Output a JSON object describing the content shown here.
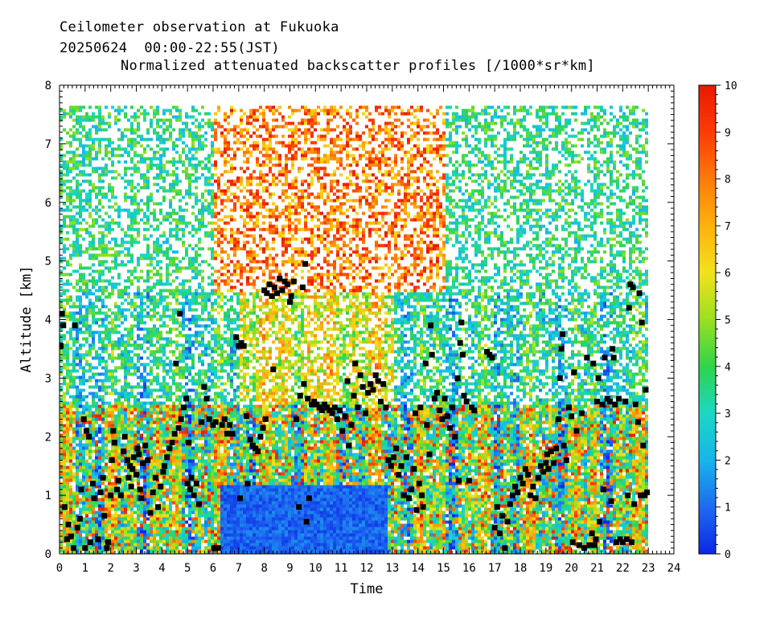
{
  "header": {
    "line1": "Ceilometer observation at Fukuoka",
    "line2": "20250624  00:00-22:55(JST)",
    "line3": "Normalized attenuated backscatter profiles [/1000*sr*km]"
  },
  "chart_data": {
    "type": "heatmap",
    "title": "Normalized attenuated backscatter profiles [/1000*sr*km]",
    "xlabel": "Time",
    "ylabel": "Altitude [km]",
    "xlim": [
      0,
      24
    ],
    "ylim": [
      0,
      8
    ],
    "xticks": [
      "0",
      "1",
      "2",
      "3",
      "4",
      "5",
      "6",
      "7",
      "8",
      "9",
      "10",
      "11",
      "12",
      "13",
      "14",
      "15",
      "16",
      "17",
      "18",
      "19",
      "20",
      "21",
      "22",
      "23",
      "24"
    ],
    "yticks": [
      "0",
      "1",
      "2",
      "3",
      "4",
      "5",
      "6",
      "7",
      "8"
    ],
    "colorbar": {
      "min": 0,
      "max": 10,
      "ticks": [
        "0",
        "1",
        "2",
        "3",
        "4",
        "5",
        "6",
        "7",
        "8",
        "9",
        "10"
      ],
      "colors": [
        "#0b28e6",
        "#1e6bf0",
        "#17b5ea",
        "#19d8c4",
        "#2fd44a",
        "#9be020",
        "#f2e21a",
        "#ffb10d",
        "#ff7a0a",
        "#ff3a05",
        "#e61a00"
      ]
    },
    "data_end_time": 22.92,
    "data_top_altitude": 7.65,
    "cloud_base_heights": [
      {
        "t": 0.05,
        "h": 3.55
      },
      {
        "t": 0.1,
        "h": 4.1
      },
      {
        "t": 0.15,
        "h": 3.9
      },
      {
        "t": 0.2,
        "h": 0.8
      },
      {
        "t": 0.3,
        "h": 0.25
      },
      {
        "t": 0.35,
        "h": 0.5
      },
      {
        "t": 0.45,
        "h": 0.3
      },
      {
        "t": 0.55,
        "h": 0.1
      },
      {
        "t": 0.6,
        "h": 3.9
      },
      {
        "t": 0.7,
        "h": 0.45
      },
      {
        "t": 0.8,
        "h": 0.6
      },
      {
        "t": 0.85,
        "h": 1.1
      },
      {
        "t": 0.95,
        "h": 2.3
      },
      {
        "t": 1.0,
        "h": 0.1
      },
      {
        "t": 1.05,
        "h": 2.1
      },
      {
        "t": 1.15,
        "h": 2.0
      },
      {
        "t": 1.2,
        "h": 0.2
      },
      {
        "t": 1.3,
        "h": 1.2
      },
      {
        "t": 1.35,
        "h": 0.95
      },
      {
        "t": 1.5,
        "h": 0.25
      },
      {
        "t": 1.6,
        "h": 1.05
      },
      {
        "t": 1.7,
        "h": 1.3
      },
      {
        "t": 1.75,
        "h": 0.65
      },
      {
        "t": 1.85,
        "h": 0.1
      },
      {
        "t": 1.9,
        "h": 0.2
      },
      {
        "t": 2.0,
        "h": 1.0
      },
      {
        "t": 2.05,
        "h": 1.6
      },
      {
        "t": 2.1,
        "h": 2.1
      },
      {
        "t": 2.15,
        "h": 1.9
      },
      {
        "t": 2.25,
        "h": 1.1
      },
      {
        "t": 2.3,
        "h": 1.25
      },
      {
        "t": 2.4,
        "h": 1.0
      },
      {
        "t": 2.5,
        "h": 1.75
      },
      {
        "t": 2.55,
        "h": 2.0
      },
      {
        "t": 2.65,
        "h": 1.6
      },
      {
        "t": 2.7,
        "h": 1.3
      },
      {
        "t": 2.75,
        "h": 1.5
      },
      {
        "t": 2.8,
        "h": 1.15
      },
      {
        "t": 2.85,
        "h": 1.45
      },
      {
        "t": 2.9,
        "h": 1.65
      },
      {
        "t": 3.0,
        "h": 1.35
      },
      {
        "t": 3.05,
        "h": 1.8
      },
      {
        "t": 3.1,
        "h": 1.7
      },
      {
        "t": 3.15,
        "h": 1.1
      },
      {
        "t": 3.2,
        "h": 0.95
      },
      {
        "t": 3.25,
        "h": 1.55
      },
      {
        "t": 3.35,
        "h": 1.85
      },
      {
        "t": 3.45,
        "h": 1.6
      },
      {
        "t": 3.55,
        "h": 0.7
      },
      {
        "t": 3.65,
        "h": 1.05
      },
      {
        "t": 3.75,
        "h": 1.3
      },
      {
        "t": 3.85,
        "h": 0.8
      },
      {
        "t": 3.95,
        "h": 1.15
      },
      {
        "t": 4.05,
        "h": 1.4
      },
      {
        "t": 4.1,
        "h": 1.5
      },
      {
        "t": 4.2,
        "h": 1.65
      },
      {
        "t": 4.3,
        "h": 1.8
      },
      {
        "t": 4.4,
        "h": 1.9
      },
      {
        "t": 4.5,
        "h": 2.05
      },
      {
        "t": 4.55,
        "h": 3.25
      },
      {
        "t": 4.65,
        "h": 2.15
      },
      {
        "t": 4.7,
        "h": 4.1
      },
      {
        "t": 4.75,
        "h": 2.3
      },
      {
        "t": 4.85,
        "h": 2.5
      },
      {
        "t": 4.95,
        "h": 2.65
      },
      {
        "t": 5.0,
        "h": 1.2
      },
      {
        "t": 5.05,
        "h": 1.9
      },
      {
        "t": 5.1,
        "h": 1.1
      },
      {
        "t": 5.15,
        "h": 1.3
      },
      {
        "t": 5.25,
        "h": 1.0
      },
      {
        "t": 5.35,
        "h": 1.2
      },
      {
        "t": 5.45,
        "h": 0.85
      },
      {
        "t": 5.55,
        "h": 2.25
      },
      {
        "t": 5.65,
        "h": 2.85
      },
      {
        "t": 5.75,
        "h": 2.65
      },
      {
        "t": 5.85,
        "h": 2.3
      },
      {
        "t": 6.0,
        "h": 2.2
      },
      {
        "t": 6.05,
        "h": 0.1
      },
      {
        "t": 6.1,
        "h": 2.25
      },
      {
        "t": 6.2,
        "h": 0.1
      },
      {
        "t": 6.35,
        "h": 2.2
      },
      {
        "t": 6.45,
        "h": 2.3
      },
      {
        "t": 6.55,
        "h": 2.05
      },
      {
        "t": 6.65,
        "h": 2.2
      },
      {
        "t": 6.75,
        "h": 2.05
      },
      {
        "t": 6.9,
        "h": 3.7
      },
      {
        "t": 7.0,
        "h": 3.55
      },
      {
        "t": 7.05,
        "h": 0.95
      },
      {
        "t": 7.1,
        "h": 3.6
      },
      {
        "t": 7.2,
        "h": 3.55
      },
      {
        "t": 7.3,
        "h": 2.35
      },
      {
        "t": 7.35,
        "h": 1.2
      },
      {
        "t": 7.45,
        "h": 1.95
      },
      {
        "t": 7.55,
        "h": 1.85
      },
      {
        "t": 7.65,
        "h": 1.8
      },
      {
        "t": 7.75,
        "h": 1.75
      },
      {
        "t": 7.85,
        "h": 2.0
      },
      {
        "t": 7.95,
        "h": 2.15
      },
      {
        "t": 8.05,
        "h": 2.3
      },
      {
        "t": 8.0,
        "h": 4.5
      },
      {
        "t": 8.1,
        "h": 4.45
      },
      {
        "t": 8.2,
        "h": 4.6
      },
      {
        "t": 8.3,
        "h": 4.4
      },
      {
        "t": 8.35,
        "h": 3.15
      },
      {
        "t": 8.4,
        "h": 4.55
      },
      {
        "t": 8.5,
        "h": 4.45
      },
      {
        "t": 8.6,
        "h": 4.7
      },
      {
        "t": 8.7,
        "h": 4.5
      },
      {
        "t": 8.8,
        "h": 4.65
      },
      {
        "t": 8.9,
        "h": 4.6
      },
      {
        "t": 9.0,
        "h": 4.3
      },
      {
        "t": 9.05,
        "h": 4.4
      },
      {
        "t": 9.15,
        "h": 4.65
      },
      {
        "t": 9.25,
        "h": 2.3
      },
      {
        "t": 9.35,
        "h": 0.8
      },
      {
        "t": 9.4,
        "h": 2.7
      },
      {
        "t": 9.5,
        "h": 4.55
      },
      {
        "t": 9.55,
        "h": 2.9
      },
      {
        "t": 9.6,
        "h": 4.95
      },
      {
        "t": 9.65,
        "h": 0.55
      },
      {
        "t": 9.7,
        "h": 2.65
      },
      {
        "t": 9.75,
        "h": 0.95
      },
      {
        "t": 9.85,
        "h": 2.55
      },
      {
        "t": 9.95,
        "h": 2.6
      },
      {
        "t": 10.05,
        "h": 2.55
      },
      {
        "t": 10.15,
        "h": 2.5
      },
      {
        "t": 10.25,
        "h": 2.45
      },
      {
        "t": 10.35,
        "h": 2.55
      },
      {
        "t": 10.45,
        "h": 2.5
      },
      {
        "t": 10.55,
        "h": 2.45
      },
      {
        "t": 10.65,
        "h": 2.4
      },
      {
        "t": 10.75,
        "h": 2.5
      },
      {
        "t": 10.85,
        "h": 2.3
      },
      {
        "t": 10.95,
        "h": 2.45
      },
      {
        "t": 11.05,
        "h": 2.1
      },
      {
        "t": 11.15,
        "h": 2.35
      },
      {
        "t": 11.25,
        "h": 2.95
      },
      {
        "t": 11.3,
        "h": 1.85
      },
      {
        "t": 11.4,
        "h": 2.2
      },
      {
        "t": 11.5,
        "h": 2.7
      },
      {
        "t": 11.55,
        "h": 3.25
      },
      {
        "t": 11.65,
        "h": 2.5
      },
      {
        "t": 11.75,
        "h": 3.05
      },
      {
        "t": 11.85,
        "h": 2.85
      },
      {
        "t": 11.95,
        "h": 2.4
      },
      {
        "t": 12.05,
        "h": 2.75
      },
      {
        "t": 12.15,
        "h": 2.9
      },
      {
        "t": 12.25,
        "h": 2.8
      },
      {
        "t": 12.35,
        "h": 3.05
      },
      {
        "t": 12.45,
        "h": 2.95
      },
      {
        "t": 12.55,
        "h": 2.6
      },
      {
        "t": 12.65,
        "h": 2.9
      },
      {
        "t": 12.75,
        "h": 2.5
      },
      {
        "t": 12.85,
        "h": 1.6
      },
      {
        "t": 12.95,
        "h": 1.5
      },
      {
        "t": 13.05,
        "h": 1.65
      },
      {
        "t": 13.15,
        "h": 1.8
      },
      {
        "t": 13.25,
        "h": 1.35
      },
      {
        "t": 13.35,
        "h": 1.5
      },
      {
        "t": 13.45,
        "h": 1.0
      },
      {
        "t": 13.55,
        "h": 1.65
      },
      {
        "t": 13.65,
        "h": 0.95
      },
      {
        "t": 13.75,
        "h": 1.1
      },
      {
        "t": 13.85,
        "h": 1.45
      },
      {
        "t": 13.9,
        "h": 2.4
      },
      {
        "t": 13.95,
        "h": 0.75
      },
      {
        "t": 14.05,
        "h": 1.2
      },
      {
        "t": 14.1,
        "h": 2.5
      },
      {
        "t": 14.15,
        "h": 1.0
      },
      {
        "t": 14.2,
        "h": 0.8
      },
      {
        "t": 14.3,
        "h": 3.25
      },
      {
        "t": 14.35,
        "h": 2.2
      },
      {
        "t": 14.45,
        "h": 1.7
      },
      {
        "t": 14.5,
        "h": 3.9
      },
      {
        "t": 14.55,
        "h": 3.4
      },
      {
        "t": 14.65,
        "h": 2.65
      },
      {
        "t": 14.75,
        "h": 2.75
      },
      {
        "t": 14.85,
        "h": 2.45
      },
      {
        "t": 14.95,
        "h": 2.3
      },
      {
        "t": 15.05,
        "h": 2.65
      },
      {
        "t": 15.15,
        "h": 2.35
      },
      {
        "t": 15.25,
        "h": 2.15
      },
      {
        "t": 15.35,
        "h": 2.5
      },
      {
        "t": 15.45,
        "h": 2.0
      },
      {
        "t": 15.55,
        "h": 3.0
      },
      {
        "t": 15.6,
        "h": 1.25
      },
      {
        "t": 15.65,
        "h": 3.6
      },
      {
        "t": 15.7,
        "h": 3.95
      },
      {
        "t": 15.75,
        "h": 3.4
      },
      {
        "t": 15.8,
        "h": 2.7
      },
      {
        "t": 15.9,
        "h": 2.6
      },
      {
        "t": 16.0,
        "h": 1.25
      },
      {
        "t": 16.1,
        "h": 2.5
      },
      {
        "t": 16.2,
        "h": 2.45
      },
      {
        "t": 16.7,
        "h": 3.45
      },
      {
        "t": 16.8,
        "h": 3.4
      },
      {
        "t": 16.9,
        "h": 3.35
      },
      {
        "t": 17.0,
        "h": 0.45
      },
      {
        "t": 17.1,
        "h": 0.8
      },
      {
        "t": 17.2,
        "h": 0.35
      },
      {
        "t": 17.3,
        "h": 0.65
      },
      {
        "t": 17.4,
        "h": 0.1
      },
      {
        "t": 17.5,
        "h": 0.55
      },
      {
        "t": 17.6,
        "h": 0.85
      },
      {
        "t": 17.7,
        "h": 1.0
      },
      {
        "t": 17.8,
        "h": 1.15
      },
      {
        "t": 17.9,
        "h": 1.05
      },
      {
        "t": 18.0,
        "h": 1.3
      },
      {
        "t": 18.1,
        "h": 1.2
      },
      {
        "t": 18.2,
        "h": 1.45
      },
      {
        "t": 18.3,
        "h": 1.35
      },
      {
        "t": 18.4,
        "h": 1.0
      },
      {
        "t": 18.5,
        "h": 1.15
      },
      {
        "t": 18.6,
        "h": 0.95
      },
      {
        "t": 18.7,
        "h": 1.3
      },
      {
        "t": 18.8,
        "h": 1.5
      },
      {
        "t": 18.9,
        "h": 1.4
      },
      {
        "t": 19.0,
        "h": 1.55
      },
      {
        "t": 19.05,
        "h": 1.7
      },
      {
        "t": 19.1,
        "h": 1.45
      },
      {
        "t": 19.2,
        "h": 1.75
      },
      {
        "t": 19.3,
        "h": 1.55
      },
      {
        "t": 19.4,
        "h": 1.8
      },
      {
        "t": 19.5,
        "h": 2.3
      },
      {
        "t": 19.55,
        "h": 3.0
      },
      {
        "t": 19.6,
        "h": 3.5
      },
      {
        "t": 19.65,
        "h": 3.75
      },
      {
        "t": 19.7,
        "h": 1.85
      },
      {
        "t": 19.8,
        "h": 1.6
      },
      {
        "t": 19.9,
        "h": 2.5
      },
      {
        "t": 20.0,
        "h": 2.35
      },
      {
        "t": 20.05,
        "h": 0.2
      },
      {
        "t": 20.1,
        "h": 3.1
      },
      {
        "t": 20.2,
        "h": 2.1
      },
      {
        "t": 20.3,
        "h": 0.15
      },
      {
        "t": 20.4,
        "h": 2.4
      },
      {
        "t": 20.5,
        "h": 0.1
      },
      {
        "t": 20.6,
        "h": 3.35
      },
      {
        "t": 20.7,
        "h": 0.15
      },
      {
        "t": 20.8,
        "h": 0.35
      },
      {
        "t": 20.85,
        "h": 3.25
      },
      {
        "t": 20.9,
        "h": 0.15
      },
      {
        "t": 20.95,
        "h": 0.25
      },
      {
        "t": 21.0,
        "h": 2.6
      },
      {
        "t": 21.05,
        "h": 3.0
      },
      {
        "t": 21.1,
        "h": 0.55
      },
      {
        "t": 21.2,
        "h": 2.55
      },
      {
        "t": 21.25,
        "h": 1.1
      },
      {
        "t": 21.3,
        "h": 3.35
      },
      {
        "t": 21.4,
        "h": 2.65
      },
      {
        "t": 21.5,
        "h": 2.6
      },
      {
        "t": 21.55,
        "h": 0.9
      },
      {
        "t": 21.6,
        "h": 3.5
      },
      {
        "t": 21.65,
        "h": 3.35
      },
      {
        "t": 21.7,
        "h": 2.55
      },
      {
        "t": 21.75,
        "h": 0.2
      },
      {
        "t": 21.85,
        "h": 2.65
      },
      {
        "t": 21.9,
        "h": 0.25
      },
      {
        "t": 22.0,
        "h": 0.2
      },
      {
        "t": 22.1,
        "h": 2.6
      },
      {
        "t": 22.15,
        "h": 0.25
      },
      {
        "t": 22.2,
        "h": 1.0
      },
      {
        "t": 22.25,
        "h": 4.2
      },
      {
        "t": 22.3,
        "h": 4.6
      },
      {
        "t": 22.35,
        "h": 0.2
      },
      {
        "t": 22.4,
        "h": 4.55
      },
      {
        "t": 22.45,
        "h": 0.85
      },
      {
        "t": 22.5,
        "h": 2.55
      },
      {
        "t": 22.6,
        "h": 2.25
      },
      {
        "t": 22.65,
        "h": 4.45
      },
      {
        "t": 22.7,
        "h": 1.0
      },
      {
        "t": 22.75,
        "h": 3.95
      },
      {
        "t": 22.8,
        "h": 1.85
      },
      {
        "t": 22.85,
        "h": 1.0
      },
      {
        "t": 22.9,
        "h": 2.8
      },
      {
        "t": 22.95,
        "h": 1.05
      }
    ]
  }
}
